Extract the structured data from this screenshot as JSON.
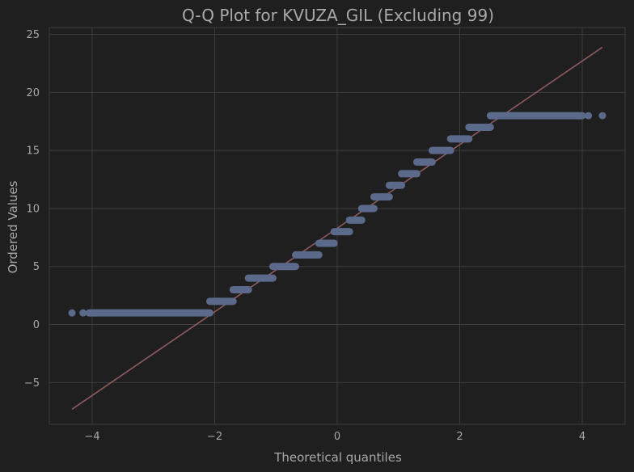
{
  "chart_data": {
    "type": "scatter",
    "title": "Q-Q Plot for KVUZA_GIL (Excluding 99)",
    "xlabel": "Theoretical quantiles",
    "ylabel": "Ordered Values",
    "xlim": [
      -4.7,
      4.7
    ],
    "ylim": [
      -8.6,
      25.6
    ],
    "xticks": [
      -4,
      -2,
      0,
      2,
      4
    ],
    "xtick_labels": [
      "−4",
      "−2",
      "0",
      "2",
      "4"
    ],
    "yticks": [
      -5,
      0,
      5,
      10,
      15,
      20,
      25
    ],
    "ytick_labels": [
      "−5",
      "0",
      "5",
      "10",
      "15",
      "20",
      "25"
    ],
    "grid": true,
    "background_color": "#1f1f1f",
    "grid_color": "#3d3d3d",
    "point_color": "#5b6a8a",
    "line_color": "#8c5a5e",
    "series": [
      {
        "kind": "reference-line",
        "x": [
          -4.33,
          4.33
        ],
        "y": [
          -7.3,
          23.9
        ]
      },
      {
        "kind": "points",
        "segments": [
          {
            "x_start": -4.05,
            "x_end": -2.08,
            "y": 1
          },
          {
            "x_start": -2.08,
            "x_end": -1.7,
            "y": 2
          },
          {
            "x_start": -1.7,
            "x_end": -1.45,
            "y": 3
          },
          {
            "x_start": -1.45,
            "x_end": -1.05,
            "y": 4
          },
          {
            "x_start": -1.05,
            "x_end": -0.68,
            "y": 5
          },
          {
            "x_start": -0.68,
            "x_end": -0.3,
            "y": 6
          },
          {
            "x_start": -0.3,
            "x_end": -0.05,
            "y": 7
          },
          {
            "x_start": -0.05,
            "x_end": 0.2,
            "y": 8
          },
          {
            "x_start": 0.2,
            "x_end": 0.4,
            "y": 9
          },
          {
            "x_start": 0.4,
            "x_end": 0.6,
            "y": 10
          },
          {
            "x_start": 0.6,
            "x_end": 0.85,
            "y": 11
          },
          {
            "x_start": 0.85,
            "x_end": 1.05,
            "y": 12
          },
          {
            "x_start": 1.05,
            "x_end": 1.3,
            "y": 13
          },
          {
            "x_start": 1.3,
            "x_end": 1.55,
            "y": 14
          },
          {
            "x_start": 1.55,
            "x_end": 1.85,
            "y": 15
          },
          {
            "x_start": 1.85,
            "x_end": 2.15,
            "y": 16
          },
          {
            "x_start": 2.15,
            "x_end": 2.5,
            "y": 17
          },
          {
            "x_start": 2.5,
            "x_end": 4.0,
            "y": 18
          }
        ],
        "outliers": [
          {
            "x": -4.33,
            "y": 1
          },
          {
            "x": -4.15,
            "y": 1
          },
          {
            "x": 4.1,
            "y": 18
          },
          {
            "x": 4.33,
            "y": 18
          }
        ]
      }
    ]
  }
}
